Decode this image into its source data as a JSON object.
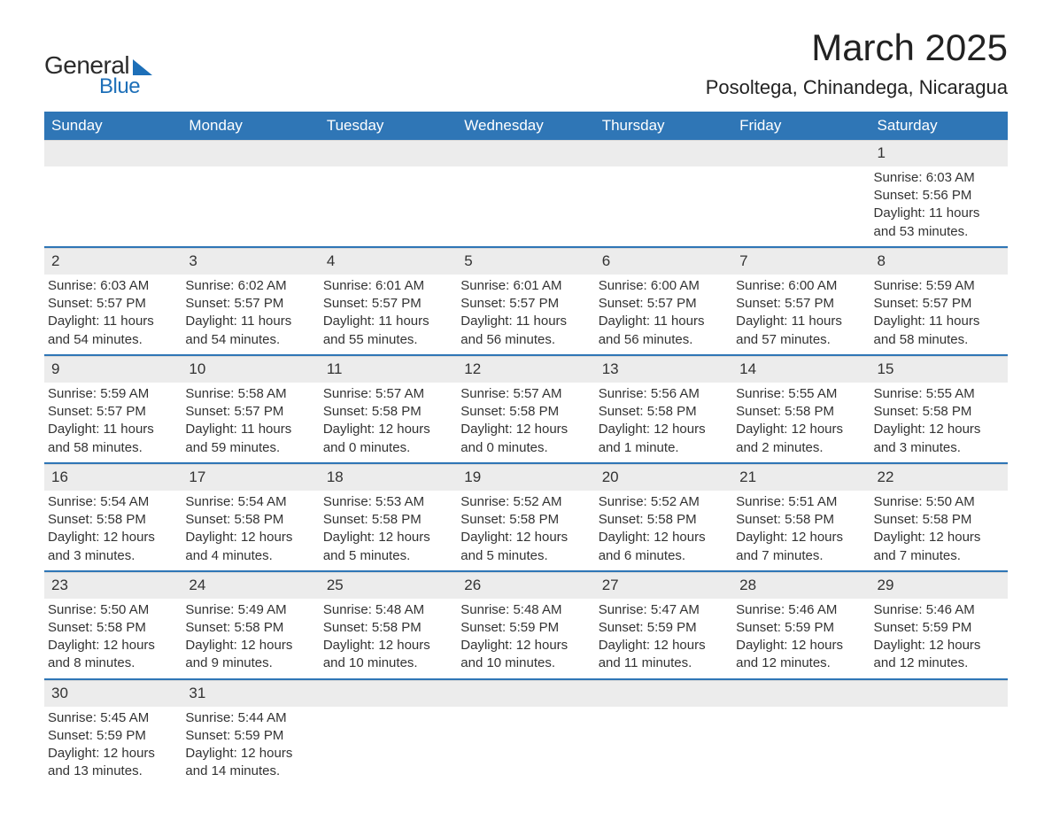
{
  "logo": {
    "text_general": "General",
    "text_blue": "Blue",
    "color_blue": "#1d6fb8",
    "color_text": "#2b2b2b"
  },
  "title": "March 2025",
  "location": "Posoltega, Chinandega, Nicaragua",
  "colors": {
    "header_bg": "#2f76b6",
    "header_fg": "#ffffff",
    "daynum_bg": "#ececec",
    "row_border": "#2f76b6",
    "body_text": "#333333",
    "page_bg": "#ffffff"
  },
  "font": {
    "family": "Arial",
    "title_size_pt": 32,
    "location_size_pt": 17,
    "header_size_pt": 13,
    "cell_size_pt": 11
  },
  "calendar": {
    "type": "table",
    "columns": [
      "Sunday",
      "Monday",
      "Tuesday",
      "Wednesday",
      "Thursday",
      "Friday",
      "Saturday"
    ],
    "first_day_column_index": 6,
    "days": [
      {
        "n": 1,
        "sunrise": "6:03 AM",
        "sunset": "5:56 PM",
        "daylight": "11 hours and 53 minutes."
      },
      {
        "n": 2,
        "sunrise": "6:03 AM",
        "sunset": "5:57 PM",
        "daylight": "11 hours and 54 minutes."
      },
      {
        "n": 3,
        "sunrise": "6:02 AM",
        "sunset": "5:57 PM",
        "daylight": "11 hours and 54 minutes."
      },
      {
        "n": 4,
        "sunrise": "6:01 AM",
        "sunset": "5:57 PM",
        "daylight": "11 hours and 55 minutes."
      },
      {
        "n": 5,
        "sunrise": "6:01 AM",
        "sunset": "5:57 PM",
        "daylight": "11 hours and 56 minutes."
      },
      {
        "n": 6,
        "sunrise": "6:00 AM",
        "sunset": "5:57 PM",
        "daylight": "11 hours and 56 minutes."
      },
      {
        "n": 7,
        "sunrise": "6:00 AM",
        "sunset": "5:57 PM",
        "daylight": "11 hours and 57 minutes."
      },
      {
        "n": 8,
        "sunrise": "5:59 AM",
        "sunset": "5:57 PM",
        "daylight": "11 hours and 58 minutes."
      },
      {
        "n": 9,
        "sunrise": "5:59 AM",
        "sunset": "5:57 PM",
        "daylight": "11 hours and 58 minutes."
      },
      {
        "n": 10,
        "sunrise": "5:58 AM",
        "sunset": "5:57 PM",
        "daylight": "11 hours and 59 minutes."
      },
      {
        "n": 11,
        "sunrise": "5:57 AM",
        "sunset": "5:58 PM",
        "daylight": "12 hours and 0 minutes."
      },
      {
        "n": 12,
        "sunrise": "5:57 AM",
        "sunset": "5:58 PM",
        "daylight": "12 hours and 0 minutes."
      },
      {
        "n": 13,
        "sunrise": "5:56 AM",
        "sunset": "5:58 PM",
        "daylight": "12 hours and 1 minute."
      },
      {
        "n": 14,
        "sunrise": "5:55 AM",
        "sunset": "5:58 PM",
        "daylight": "12 hours and 2 minutes."
      },
      {
        "n": 15,
        "sunrise": "5:55 AM",
        "sunset": "5:58 PM",
        "daylight": "12 hours and 3 minutes."
      },
      {
        "n": 16,
        "sunrise": "5:54 AM",
        "sunset": "5:58 PM",
        "daylight": "12 hours and 3 minutes."
      },
      {
        "n": 17,
        "sunrise": "5:54 AM",
        "sunset": "5:58 PM",
        "daylight": "12 hours and 4 minutes."
      },
      {
        "n": 18,
        "sunrise": "5:53 AM",
        "sunset": "5:58 PM",
        "daylight": "12 hours and 5 minutes."
      },
      {
        "n": 19,
        "sunrise": "5:52 AM",
        "sunset": "5:58 PM",
        "daylight": "12 hours and 5 minutes."
      },
      {
        "n": 20,
        "sunrise": "5:52 AM",
        "sunset": "5:58 PM",
        "daylight": "12 hours and 6 minutes."
      },
      {
        "n": 21,
        "sunrise": "5:51 AM",
        "sunset": "5:58 PM",
        "daylight": "12 hours and 7 minutes."
      },
      {
        "n": 22,
        "sunrise": "5:50 AM",
        "sunset": "5:58 PM",
        "daylight": "12 hours and 7 minutes."
      },
      {
        "n": 23,
        "sunrise": "5:50 AM",
        "sunset": "5:58 PM",
        "daylight": "12 hours and 8 minutes."
      },
      {
        "n": 24,
        "sunrise": "5:49 AM",
        "sunset": "5:58 PM",
        "daylight": "12 hours and 9 minutes."
      },
      {
        "n": 25,
        "sunrise": "5:48 AM",
        "sunset": "5:58 PM",
        "daylight": "12 hours and 10 minutes."
      },
      {
        "n": 26,
        "sunrise": "5:48 AM",
        "sunset": "5:59 PM",
        "daylight": "12 hours and 10 minutes."
      },
      {
        "n": 27,
        "sunrise": "5:47 AM",
        "sunset": "5:59 PM",
        "daylight": "12 hours and 11 minutes."
      },
      {
        "n": 28,
        "sunrise": "5:46 AM",
        "sunset": "5:59 PM",
        "daylight": "12 hours and 12 minutes."
      },
      {
        "n": 29,
        "sunrise": "5:46 AM",
        "sunset": "5:59 PM",
        "daylight": "12 hours and 12 minutes."
      },
      {
        "n": 30,
        "sunrise": "5:45 AM",
        "sunset": "5:59 PM",
        "daylight": "12 hours and 13 minutes."
      },
      {
        "n": 31,
        "sunrise": "5:44 AM",
        "sunset": "5:59 PM",
        "daylight": "12 hours and 14 minutes."
      }
    ],
    "labels": {
      "sunrise_prefix": "Sunrise: ",
      "sunset_prefix": "Sunset: ",
      "daylight_prefix": "Daylight: "
    }
  }
}
